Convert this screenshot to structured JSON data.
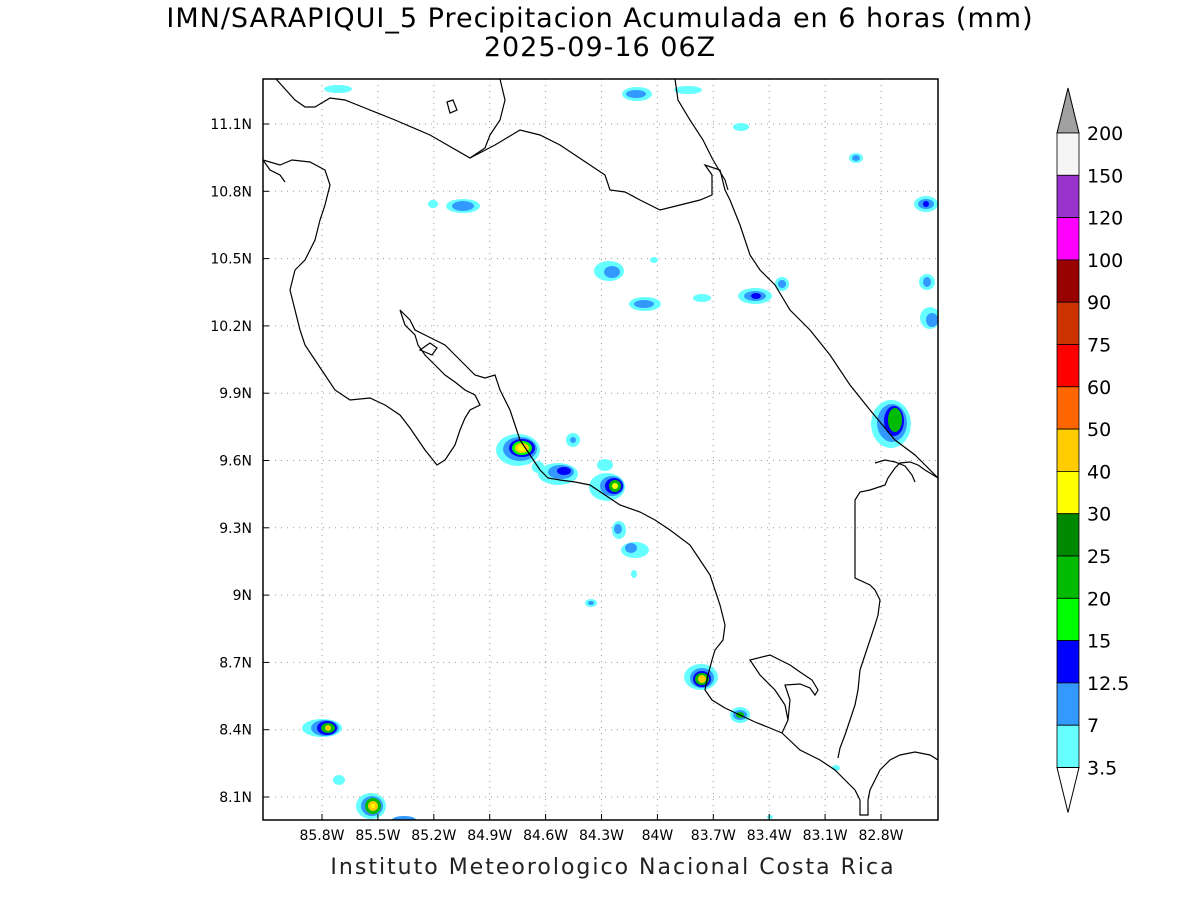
{
  "header": {
    "title": "IMN/SARAPIQUI_5 Precipitacion Acumulada en 6 horas (mm)",
    "subtitle": "2025-09-16 06Z"
  },
  "footer": {
    "credit": "Instituto Meteorologico Nacional Costa Rica"
  },
  "map": {
    "x_ticks": [
      "85.8W",
      "85.5W",
      "85.2W",
      "84.9W",
      "84.6W",
      "84.3W",
      "84W",
      "83.7W",
      "83.4W",
      "83.1W",
      "82.8W"
    ],
    "y_ticks": [
      "11.1N",
      "10.8N",
      "10.5N",
      "10.2N",
      "9.9N",
      "9.6N",
      "9.3N",
      "9N",
      "8.7N",
      "8.4N",
      "8.1N"
    ],
    "grid": "dotted"
  },
  "colorbar": {
    "labels": [
      "200",
      "150",
      "120",
      "100",
      "90",
      "75",
      "60",
      "50",
      "40",
      "30",
      "25",
      "20",
      "15",
      "12.5",
      "7",
      "3.5"
    ],
    "colors": [
      "#a0a0a0",
      "#f5f5f5",
      "#9933cc",
      "#ff00ff",
      "#990000",
      "#cc3300",
      "#ff0000",
      "#ff6600",
      "#ffcc00",
      "#ffff00",
      "#008800",
      "#00bb00",
      "#00ff00",
      "#0000ff",
      "#3399ff",
      "#66ffff"
    ]
  },
  "legend_colors": {
    "cyan": "#66ffff",
    "lightblue": "#3399ff",
    "blue": "#0000ff",
    "green": "#00ff00",
    "midgreen": "#00bb00",
    "darkgreen": "#008800",
    "yellow": "#ffff00",
    "gold": "#ffcc00"
  }
}
